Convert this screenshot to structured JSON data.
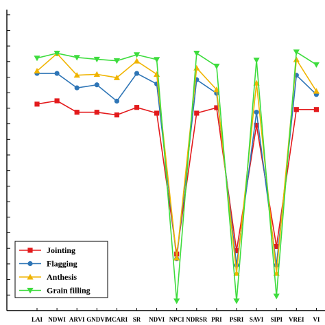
{
  "chart_data": {
    "type": "line",
    "title": "",
    "xlabel": "",
    "ylabel": "",
    "ylim": [
      0,
      1
    ],
    "grid": false,
    "legend_position": "bottom-left",
    "categories": [
      "LAI",
      "NDWI",
      "ARVI",
      "GNDVI",
      "MCARI",
      "SR",
      "NDVI",
      "NPCI",
      "NDRSR",
      "PRI",
      "PSRI",
      "SAVI",
      "SIPI",
      "VREI",
      "VI"
    ],
    "series": [
      {
        "name": "Jointing",
        "color": "#e31a1c",
        "marker": "square",
        "values": [
          0.686,
          0.697,
          0.659,
          0.659,
          0.65,
          0.675,
          0.656,
          0.188,
          0.656,
          0.674,
          0.199,
          0.616,
          0.213,
          0.668,
          0.668
        ]
      },
      {
        "name": "Flagging",
        "color": "#2e75b6",
        "marker": "circle",
        "values": [
          0.788,
          0.788,
          0.74,
          0.75,
          0.696,
          0.788,
          0.753,
          0.172,
          0.767,
          0.722,
          0.151,
          0.659,
          0.151,
          0.782,
          0.718
        ]
      },
      {
        "name": "Anthesis",
        "color": "#f0b400",
        "marker": "triangle-up",
        "values": [
          0.796,
          0.854,
          0.782,
          0.785,
          0.774,
          0.829,
          0.785,
          0.175,
          0.806,
          0.734,
          0.124,
          0.756,
          0.124,
          0.834,
          0.729
        ]
      },
      {
        "name": "Grain filling",
        "color": "#3ddc3d",
        "marker": "triangle-down",
        "values": [
          0.839,
          0.855,
          0.841,
          0.835,
          0.83,
          0.85,
          0.834,
          0.032,
          0.855,
          0.812,
          0.032,
          0.832,
          0.048,
          0.859,
          0.817
        ]
      }
    ]
  }
}
